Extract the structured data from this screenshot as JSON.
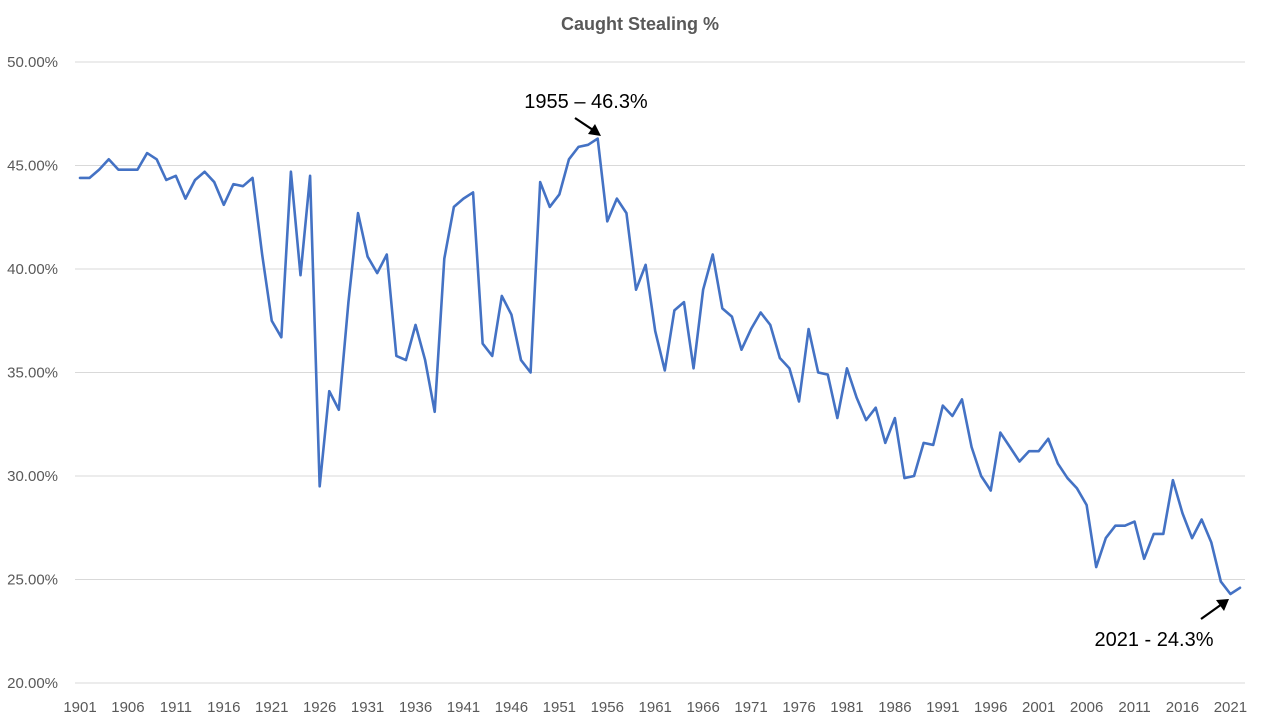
{
  "chart_data": {
    "type": "line",
    "title": "Caught Stealing %",
    "xlabel": "",
    "ylabel": "",
    "ylim": [
      20,
      50
    ],
    "y_ticks": [
      "20.00%",
      "25.00%",
      "30.00%",
      "35.00%",
      "40.00%",
      "45.00%",
      "50.00%"
    ],
    "y_tick_values": [
      20,
      25,
      30,
      35,
      40,
      45,
      50
    ],
    "x_ticks": [
      "1901",
      "1906",
      "1911",
      "1916",
      "1921",
      "1926",
      "1931",
      "1936",
      "1941",
      "1946",
      "1951",
      "1956",
      "1961",
      "1966",
      "1971",
      "1976",
      "1981",
      "1986",
      "1991",
      "1996",
      "2001",
      "2006",
      "2011",
      "2016",
      "2021"
    ],
    "x_range": [
      1901,
      2022
    ],
    "grid": true,
    "legend": "none",
    "line_color": "#4472c4",
    "series": [
      {
        "x": [
          1901,
          1902,
          1903,
          1904,
          1905,
          1906,
          1907,
          1908,
          1909,
          1910,
          1911,
          1912,
          1913,
          1914,
          1915,
          1916,
          1917,
          1918,
          1919,
          1920,
          1921,
          1922,
          1923,
          1924,
          1925,
          1926,
          1927,
          1928,
          1929,
          1930,
          1931,
          1932,
          1933,
          1934,
          1935,
          1936,
          1937,
          1938,
          1939,
          1940,
          1941,
          1942,
          1943,
          1944,
          1945,
          1946,
          1947,
          1948,
          1949,
          1950,
          1951,
          1952,
          1953,
          1954,
          1955,
          1956,
          1957,
          1958,
          1959,
          1960,
          1961,
          1962,
          1963,
          1964,
          1965,
          1966,
          1967,
          1968,
          1969,
          1970,
          1971,
          1972,
          1973,
          1974,
          1975,
          1976,
          1977,
          1978,
          1979,
          1980,
          1981,
          1982,
          1983,
          1984,
          1985,
          1986,
          1987,
          1988,
          1989,
          1990,
          1991,
          1992,
          1993,
          1994,
          1995,
          1996,
          1997,
          1998,
          1999,
          2000,
          2001,
          2002,
          2003,
          2004,
          2005,
          2006,
          2007,
          2008,
          2009,
          2010,
          2011,
          2012,
          2013,
          2014,
          2015,
          2016,
          2017,
          2018,
          2019,
          2020,
          2021,
          2022
        ],
        "values": [
          44.4,
          44.4,
          44.8,
          45.3,
          44.8,
          44.8,
          44.8,
          45.6,
          45.3,
          44.3,
          44.5,
          43.4,
          44.3,
          44.7,
          44.2,
          43.1,
          44.1,
          44.0,
          44.4,
          40.7,
          37.5,
          36.7,
          44.7,
          39.7,
          44.5,
          29.5,
          34.1,
          33.2,
          38.4,
          42.7,
          40.6,
          39.8,
          40.7,
          35.8,
          35.6,
          37.3,
          35.6,
          33.1,
          40.5,
          43.0,
          43.4,
          43.7,
          36.4,
          35.8,
          38.7,
          37.8,
          35.6,
          35.0,
          44.2,
          43.0,
          43.6,
          45.3,
          45.9,
          46.0,
          46.3,
          42.3,
          43.4,
          42.7,
          39.0,
          40.2,
          37.0,
          35.1,
          38.0,
          38.4,
          35.2,
          39.0,
          40.7,
          38.1,
          37.7,
          36.1,
          37.1,
          37.9,
          37.3,
          35.7,
          35.2,
          33.6,
          37.1,
          35.0,
          34.9,
          32.8,
          35.2,
          33.8,
          32.7,
          33.3,
          31.6,
          32.8,
          29.9,
          30.0,
          31.6,
          31.5,
          33.4,
          32.9,
          33.7,
          31.4,
          30.0,
          29.3,
          32.1,
          31.4,
          30.7,
          31.2,
          31.2,
          31.8,
          30.6,
          29.9,
          29.4,
          28.6,
          25.6,
          27.0,
          27.6,
          27.6,
          27.8,
          26.0,
          27.2,
          27.2,
          29.8,
          28.2,
          27.0,
          27.9,
          26.8,
          24.9,
          24.3,
          24.6
        ]
      }
    ],
    "annotations": [
      {
        "text": "1955 – 46.3%",
        "x": 1955,
        "y": 46.3
      },
      {
        "text": "2021 - 24.3%",
        "x": 2021,
        "y": 24.3
      }
    ]
  }
}
